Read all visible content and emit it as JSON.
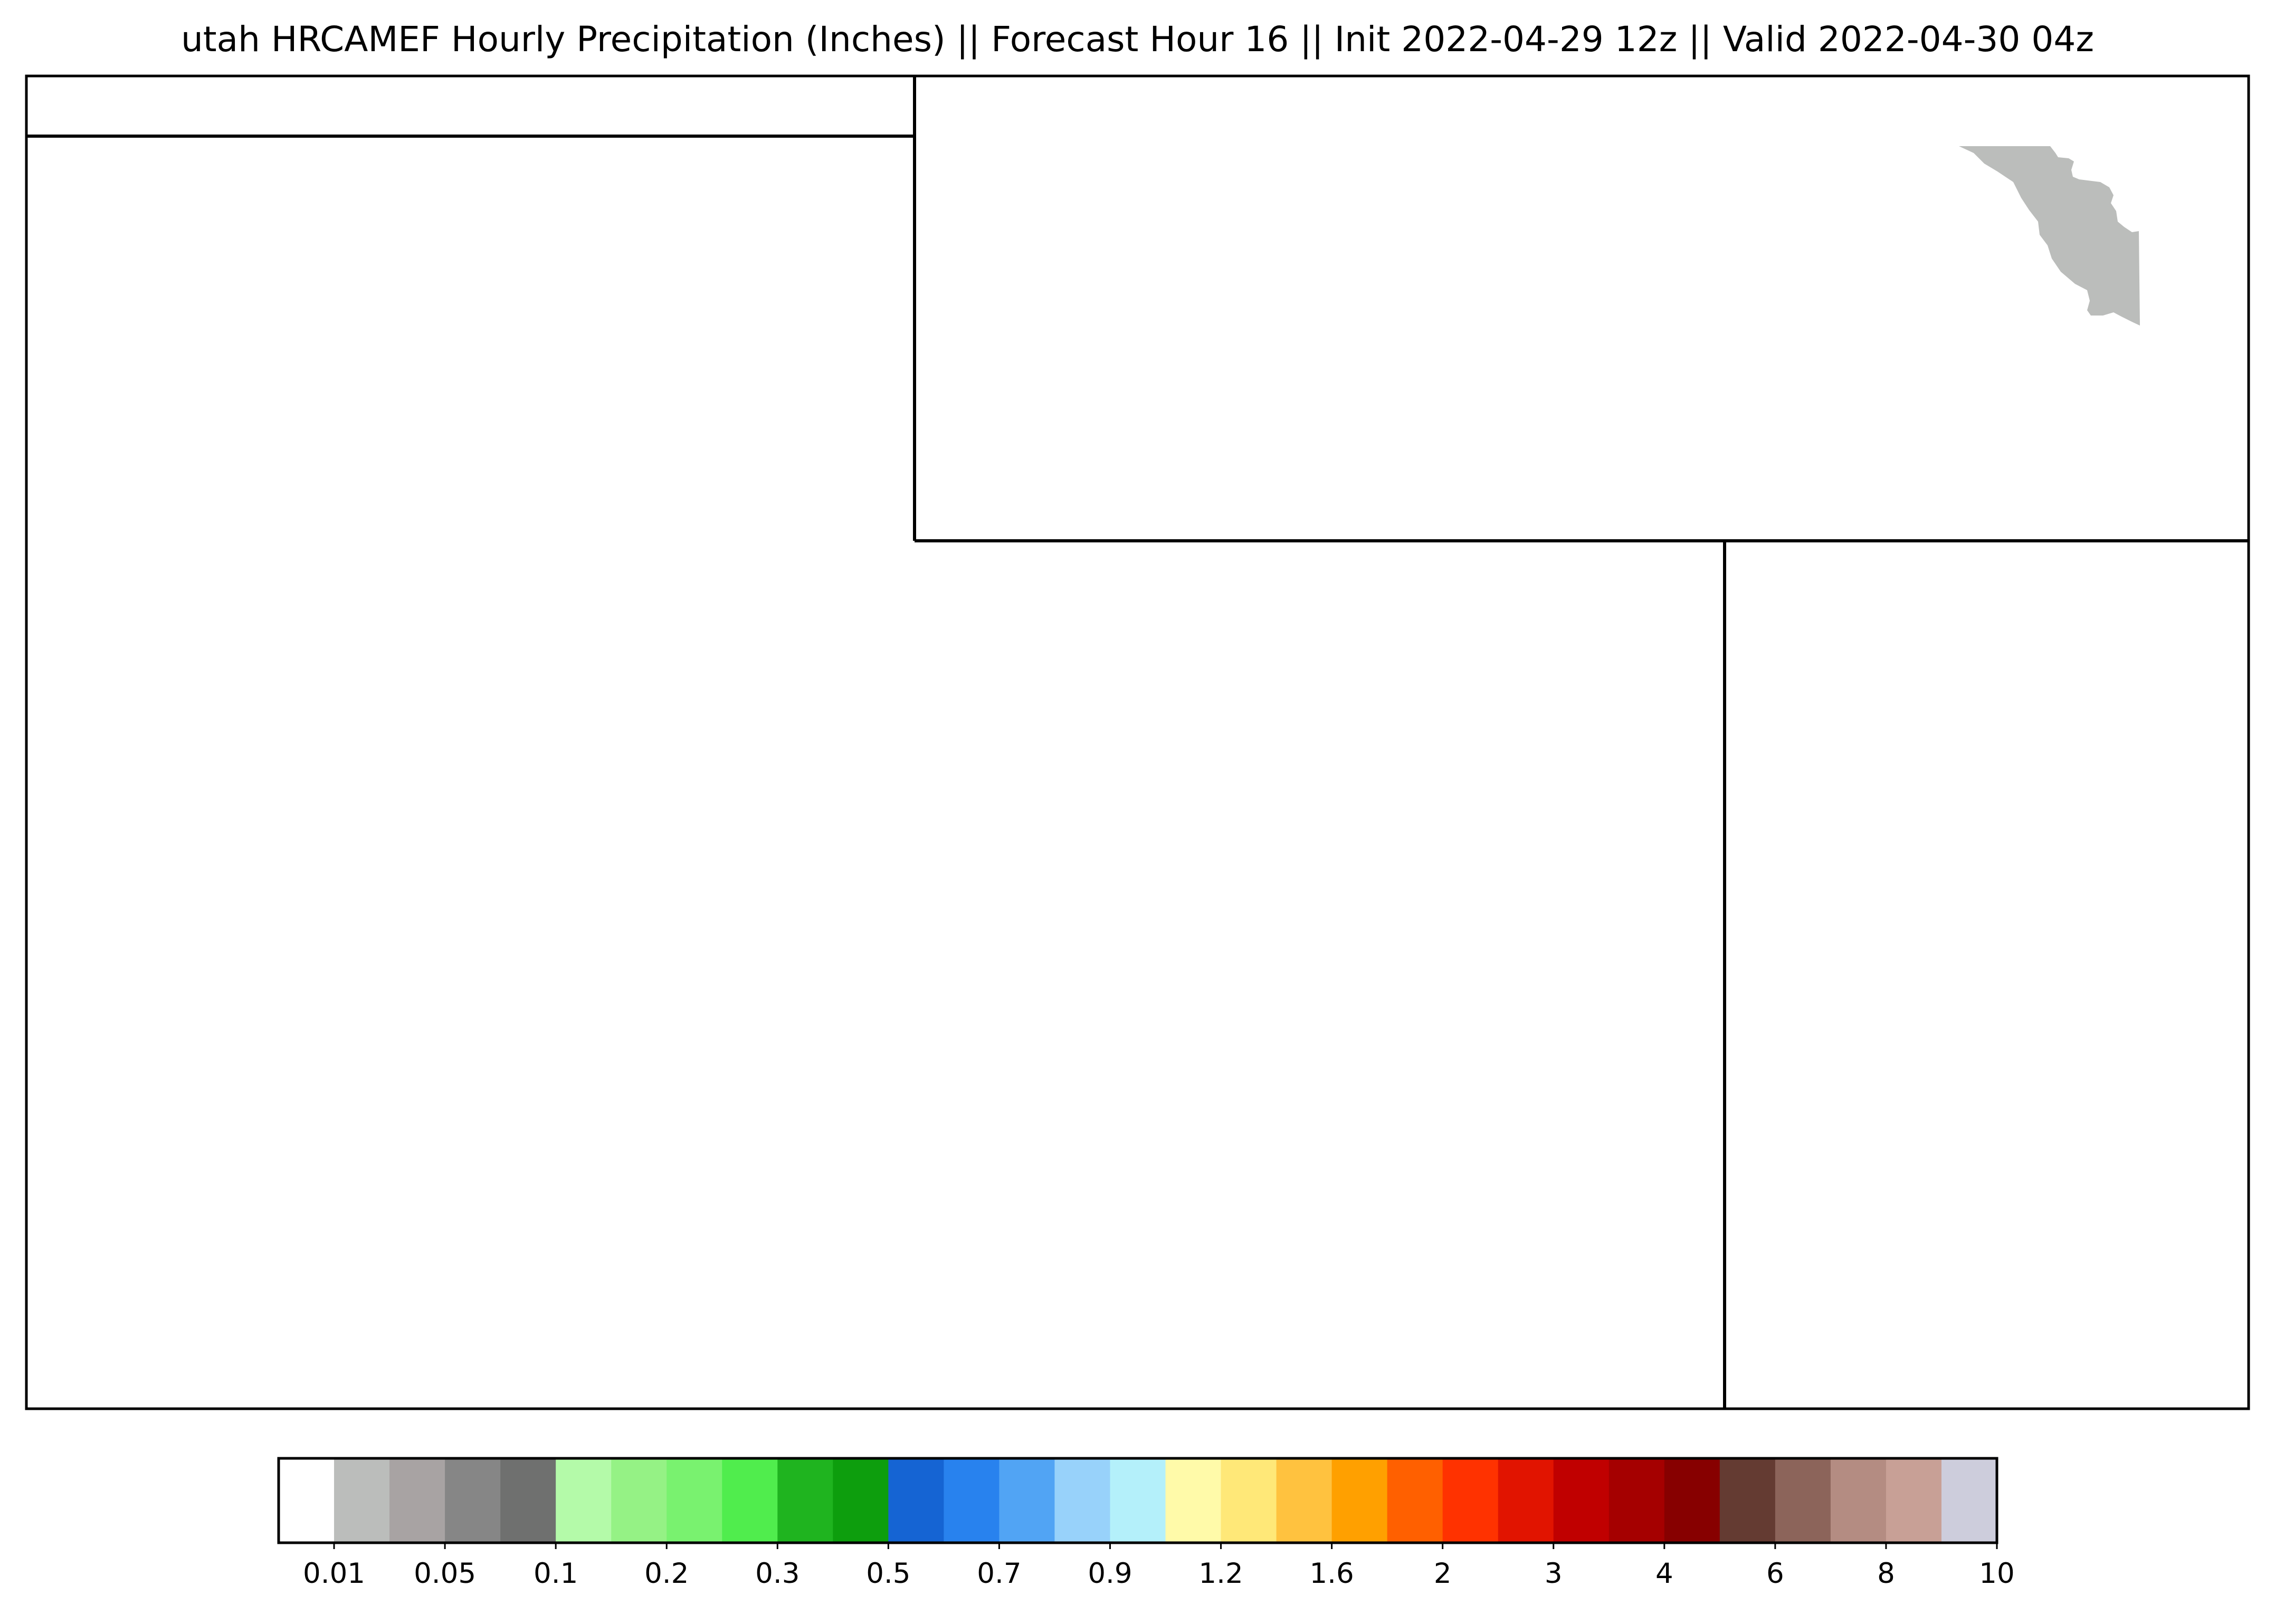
{
  "title": "utah HRCAMEF Hourly Precipitation (Inches) || Forecast Hour 16 || Init 2022-04-29 12z || Valid 2022-04-30 04z",
  "map": {
    "border_color": "#000000",
    "background_color": "#ffffff",
    "precip_area": {
      "color": "#bbbdbb"
    }
  },
  "chart_data": {
    "type": "heatmap",
    "title": "utah HRCAMEF Hourly Precipitation (Inches) || Forecast Hour 16 || Init 2022-04-29 12z || Valid 2022-04-30 04z",
    "colorbar": {
      "orientation": "horizontal",
      "bounds": [
        0,
        0.01,
        0.03,
        0.05,
        0.075,
        0.1,
        0.15,
        0.2,
        0.25,
        0.3,
        0.4,
        0.5,
        0.6,
        0.7,
        0.8,
        0.9,
        1.0,
        1.2,
        1.4,
        1.6,
        1.8,
        2,
        2.5,
        3,
        3.5,
        4,
        5,
        6,
        7,
        8,
        9,
        10
      ],
      "colors": [
        "#ffffff",
        "#bbbdbb",
        "#a8a3a3",
        "#868686",
        "#6f706f",
        "#b4faa9",
        "#95f285",
        "#79f26f",
        "#50ed4d",
        "#1fb41f",
        "#0d9e0d",
        "#1564d3",
        "#2882ee",
        "#51a4f4",
        "#98d2fa",
        "#b4f0fa",
        "#fffaa9",
        "#ffe878",
        "#ffc23f",
        "#ffa000",
        "#ff6000",
        "#ff3200",
        "#e11400",
        "#c00000",
        "#a50000",
        "#870000",
        "#643b32",
        "#8c645a",
        "#b48c82",
        "#c8a096",
        "#cdcddc"
      ],
      "tick_labels": [
        "0.01",
        "0.05",
        "0.1",
        "0.2",
        "0.3",
        "0.5",
        "0.7",
        "0.9",
        "1.2",
        "1.6",
        "2",
        "3",
        "4",
        "6",
        "8",
        "10"
      ]
    }
  }
}
